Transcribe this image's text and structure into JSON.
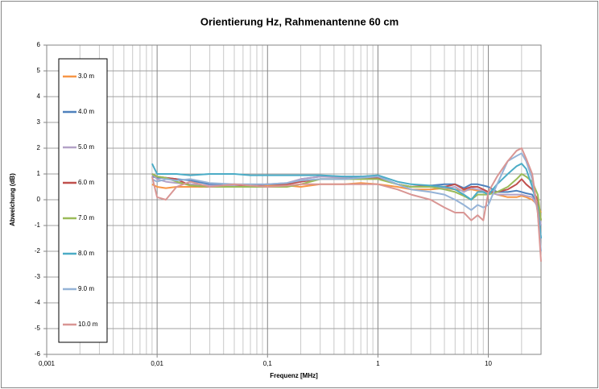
{
  "chart_data": {
    "type": "line",
    "title": "Orientierung Hz, Rahmenantenne 60 cm",
    "x_label": "Frequenz [MHz]",
    "y_label": "Abweichung (dB)",
    "x_scale": "log",
    "grid": true,
    "minor_grid": true,
    "legend": "left",
    "xlim": [
      0.001,
      30
    ],
    "xticks": [
      {
        "value": 0.001,
        "label": "0,001"
      },
      {
        "value": 0.01,
        "label": "0,01"
      },
      {
        "value": 0.1,
        "label": "0,1"
      },
      1,
      10
    ],
    "ylim": [
      -6,
      6
    ],
    "yticks": [
      -6,
      -5,
      -4,
      -3,
      -2,
      -1,
      0,
      1,
      2,
      3,
      4,
      5,
      6
    ],
    "x": [
      0.009,
      0.01,
      0.012,
      0.015,
      0.02,
      0.03,
      0.05,
      0.07,
      0.1,
      0.15,
      0.2,
      0.3,
      0.5,
      0.7,
      1,
      1.5,
      2,
      3,
      4,
      5,
      6,
      7,
      8,
      9,
      10,
      12,
      15,
      18,
      20,
      22,
      25,
      28,
      30
    ],
    "series": [
      {
        "name": "3.0 m",
        "color": "#F79646",
        "values": [
          0.6,
          0.5,
          0.45,
          0.5,
          0.5,
          0.5,
          0.5,
          0.5,
          0.55,
          0.55,
          0.5,
          0.6,
          0.6,
          0.65,
          0.6,
          0.5,
          0.4,
          0.4,
          0.45,
          0.4,
          0.35,
          0.4,
          0.35,
          0.3,
          0.3,
          0.2,
          0.1,
          0.1,
          0.15,
          0.1,
          0.0,
          -0.2,
          -0.5
        ]
      },
      {
        "name": "4.0 m",
        "color": "#4F81BD",
        "values": [
          0.9,
          0.85,
          0.85,
          0.8,
          0.75,
          0.6,
          0.55,
          0.55,
          0.6,
          0.6,
          0.8,
          0.9,
          0.9,
          0.9,
          0.9,
          0.6,
          0.5,
          0.55,
          0.6,
          0.6,
          0.45,
          0.6,
          0.6,
          0.55,
          0.5,
          0.3,
          0.3,
          0.35,
          0.3,
          0.25,
          0.2,
          -0.3,
          -1.5
        ]
      },
      {
        "name": "5.0 m",
        "color": "#B3A2C7",
        "values": [
          1.0,
          0.8,
          0.7,
          0.65,
          0.6,
          0.55,
          0.55,
          0.55,
          0.6,
          0.65,
          0.8,
          0.9,
          0.85,
          0.85,
          0.85,
          0.6,
          0.5,
          0.5,
          0.45,
          0.5,
          0.3,
          0.45,
          0.4,
          0.35,
          0.3,
          0.2,
          0.2,
          0.2,
          0.2,
          0.15,
          0.1,
          -0.3,
          -1.0
        ]
      },
      {
        "name": "6.0 m",
        "color": "#C0504D",
        "values": [
          1.0,
          0.9,
          0.85,
          0.8,
          0.55,
          0.5,
          0.5,
          0.55,
          0.6,
          0.6,
          0.7,
          0.8,
          0.8,
          0.85,
          0.85,
          0.6,
          0.5,
          0.55,
          0.5,
          0.6,
          0.4,
          0.5,
          0.5,
          0.4,
          0.3,
          0.3,
          0.4,
          0.6,
          0.8,
          0.6,
          0.4,
          0.0,
          -0.8
        ]
      },
      {
        "name": "7.0 m",
        "color": "#9BBB59",
        "values": [
          1.0,
          0.9,
          0.85,
          0.7,
          0.55,
          0.5,
          0.5,
          0.5,
          0.5,
          0.5,
          0.6,
          0.8,
          0.8,
          0.8,
          0.8,
          0.6,
          0.5,
          0.5,
          0.4,
          0.3,
          0.15,
          0.0,
          0.2,
          0.2,
          0.2,
          0.3,
          0.5,
          0.8,
          1.0,
          0.9,
          0.7,
          0.2,
          -0.8
        ]
      },
      {
        "name": "8.0 m",
        "color": "#4BACC6",
        "values": [
          1.4,
          1.0,
          1.0,
          1.0,
          0.95,
          1.0,
          1.0,
          0.95,
          0.95,
          0.95,
          0.95,
          0.95,
          0.9,
          0.9,
          0.95,
          0.7,
          0.6,
          0.55,
          0.5,
          0.4,
          0.2,
          0.0,
          0.3,
          0.3,
          0.2,
          0.6,
          1.0,
          1.3,
          1.4,
          1.2,
          0.5,
          -0.3,
          -1.5
        ]
      },
      {
        "name": "9.0 m",
        "color": "#95B3D7",
        "values": [
          0.8,
          0.7,
          0.8,
          0.75,
          0.8,
          0.65,
          0.6,
          0.6,
          0.6,
          0.65,
          0.75,
          0.8,
          0.8,
          0.85,
          0.9,
          0.6,
          0.4,
          0.3,
          0.2,
          0.0,
          -0.2,
          -0.4,
          -0.2,
          -0.3,
          -0.2,
          0.6,
          1.5,
          1.7,
          1.8,
          1.5,
          0.8,
          -0.5,
          -2.0
        ]
      },
      {
        "name": "10.0 m",
        "color": "#D99694",
        "values": [
          0.9,
          0.1,
          0.0,
          0.5,
          0.7,
          0.5,
          0.6,
          0.55,
          0.5,
          0.55,
          0.6,
          0.6,
          0.6,
          0.6,
          0.6,
          0.4,
          0.2,
          0.0,
          -0.3,
          -0.5,
          -0.5,
          -0.8,
          -0.6,
          -0.8,
          0.3,
          0.9,
          1.5,
          1.9,
          2.0,
          1.6,
          1.0,
          -0.5,
          -2.4
        ]
      }
    ]
  }
}
